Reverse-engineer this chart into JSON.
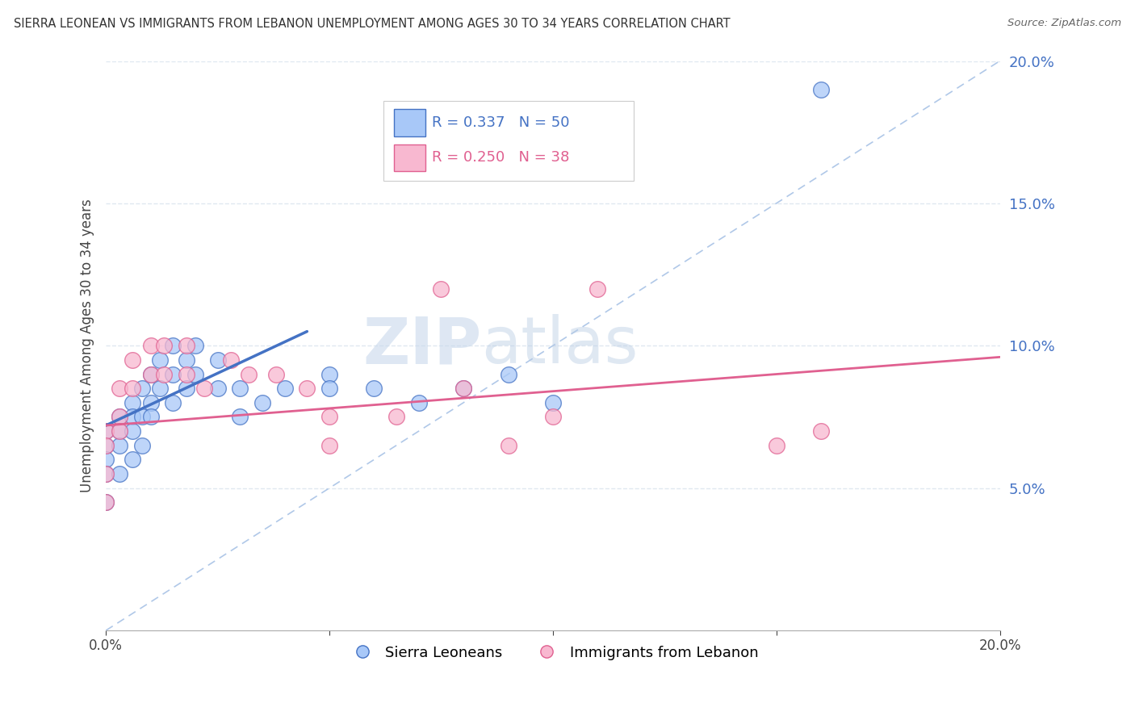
{
  "title": "SIERRA LEONEAN VS IMMIGRANTS FROM LEBANON UNEMPLOYMENT AMONG AGES 30 TO 34 YEARS CORRELATION CHART",
  "source": "Source: ZipAtlas.com",
  "ylabel": "Unemployment Among Ages 30 to 34 years",
  "xlim": [
    0.0,
    0.2
  ],
  "ylim": [
    0.0,
    0.2
  ],
  "xtick_vals": [
    0.0,
    0.05,
    0.1,
    0.15,
    0.2
  ],
  "xtick_labels": [
    "0.0%",
    "",
    "",
    "",
    "20.0%"
  ],
  "ytick_vals": [
    0.05,
    0.1,
    0.15,
    0.2
  ],
  "ytick_labels": [
    "5.0%",
    "10.0%",
    "15.0%",
    "20.0%"
  ],
  "color_blue": "#A8C8F8",
  "color_pink": "#F8B8D0",
  "color_line_blue": "#4472C4",
  "color_line_pink": "#E06090",
  "color_diag": "#B0C8E8",
  "watermark_zip": "ZIP",
  "watermark_atlas": "atlas",
  "background_color": "#FFFFFF",
  "grid_color": "#E0E8F0",
  "sierra_x": [
    0.0,
    0.0,
    0.0,
    0.0,
    0.0,
    0.003,
    0.003,
    0.003,
    0.003,
    0.006,
    0.006,
    0.006,
    0.006,
    0.008,
    0.008,
    0.008,
    0.01,
    0.01,
    0.01,
    0.012,
    0.012,
    0.015,
    0.015,
    0.015,
    0.018,
    0.018,
    0.02,
    0.02,
    0.025,
    0.025,
    0.03,
    0.03,
    0.035,
    0.04,
    0.05,
    0.05,
    0.06,
    0.07,
    0.08,
    0.09,
    0.1,
    0.16
  ],
  "sierra_y": [
    0.07,
    0.065,
    0.06,
    0.055,
    0.045,
    0.075,
    0.07,
    0.065,
    0.055,
    0.08,
    0.075,
    0.07,
    0.06,
    0.085,
    0.075,
    0.065,
    0.09,
    0.08,
    0.075,
    0.095,
    0.085,
    0.1,
    0.09,
    0.08,
    0.095,
    0.085,
    0.1,
    0.09,
    0.095,
    0.085,
    0.085,
    0.075,
    0.08,
    0.085,
    0.09,
    0.085,
    0.085,
    0.08,
    0.085,
    0.09,
    0.08,
    0.19
  ],
  "lebanon_x": [
    0.0,
    0.0,
    0.0,
    0.0,
    0.003,
    0.003,
    0.003,
    0.006,
    0.006,
    0.01,
    0.01,
    0.013,
    0.013,
    0.018,
    0.018,
    0.022,
    0.028,
    0.032,
    0.038,
    0.045,
    0.05,
    0.05,
    0.065,
    0.075,
    0.08,
    0.09,
    0.1,
    0.11,
    0.15,
    0.16
  ],
  "lebanon_y": [
    0.07,
    0.065,
    0.055,
    0.045,
    0.085,
    0.075,
    0.07,
    0.095,
    0.085,
    0.1,
    0.09,
    0.1,
    0.09,
    0.1,
    0.09,
    0.085,
    0.095,
    0.09,
    0.09,
    0.085,
    0.075,
    0.065,
    0.075,
    0.12,
    0.085,
    0.065,
    0.075,
    0.12,
    0.065,
    0.07
  ],
  "blue_line_x": [
    0.0,
    0.045
  ],
  "blue_line_y": [
    0.072,
    0.105
  ],
  "pink_line_x": [
    0.0,
    0.2
  ],
  "pink_line_y": [
    0.072,
    0.096
  ]
}
